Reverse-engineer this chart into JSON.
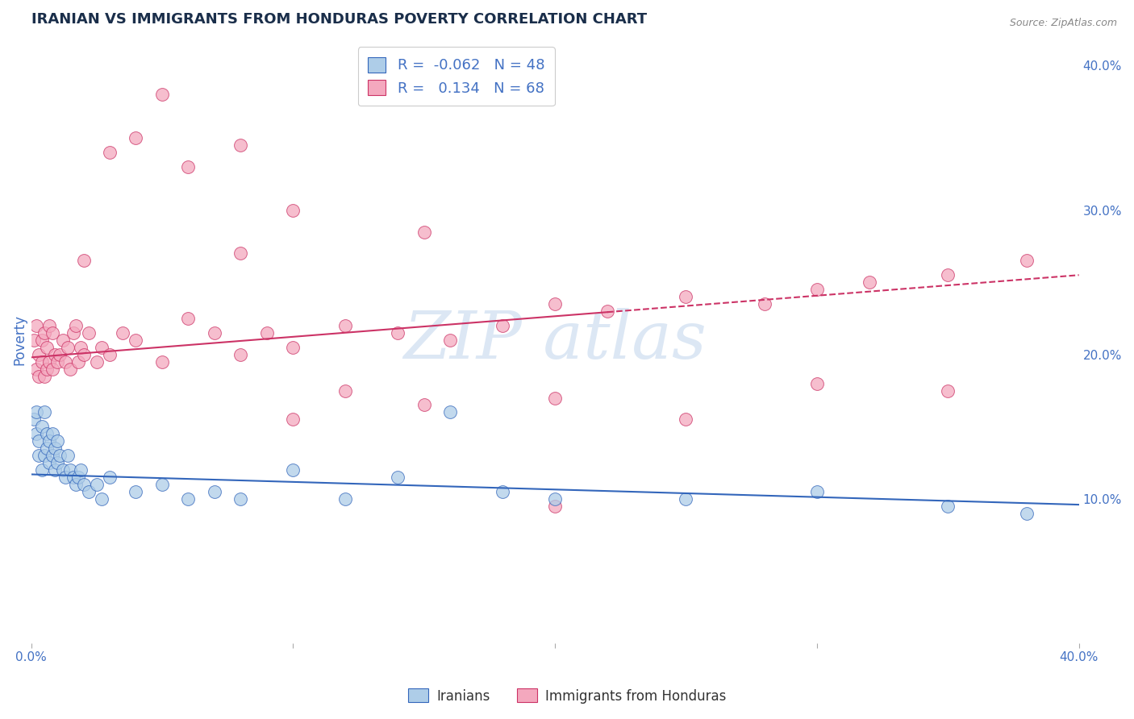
{
  "title": "IRANIAN VS IMMIGRANTS FROM HONDURAS POVERTY CORRELATION CHART",
  "source": "Source: ZipAtlas.com",
  "ylabel": "Poverty",
  "xlim": [
    0.0,
    0.4
  ],
  "ylim": [
    0.0,
    0.42
  ],
  "x_ticks": [
    0.0,
    0.1,
    0.2,
    0.3,
    0.4
  ],
  "x_tick_labels": [
    "0.0%",
    "",
    "",
    "",
    "40.0%"
  ],
  "y_ticks_right": [
    0.1,
    0.2,
    0.3,
    0.4
  ],
  "y_tick_labels_right": [
    "10.0%",
    "20.0%",
    "30.0%",
    "40.0%"
  ],
  "legend_entries": [
    {
      "label": "Iranians",
      "R": -0.062,
      "N": 48
    },
    {
      "label": "Immigrants from Honduras",
      "R": 0.134,
      "N": 68
    }
  ],
  "blue_scatter_color": "#aecde8",
  "pink_scatter_color": "#f4a8be",
  "trend_blue_color": "#3366bb",
  "trend_pink_color": "#cc3366",
  "watermark_color": "#c5d8ee",
  "background_color": "#ffffff",
  "grid_color": "#cccccc",
  "title_color": "#1a2e4a",
  "axis_label_color": "#4472c4",
  "iranians_x": [
    0.001,
    0.002,
    0.002,
    0.003,
    0.003,
    0.004,
    0.004,
    0.005,
    0.005,
    0.006,
    0.006,
    0.007,
    0.007,
    0.008,
    0.008,
    0.009,
    0.009,
    0.01,
    0.01,
    0.011,
    0.012,
    0.013,
    0.014,
    0.015,
    0.016,
    0.017,
    0.018,
    0.019,
    0.02,
    0.022,
    0.025,
    0.027,
    0.03,
    0.04,
    0.05,
    0.06,
    0.07,
    0.08,
    0.1,
    0.12,
    0.14,
    0.18,
    0.2,
    0.25,
    0.3,
    0.35,
    0.38,
    0.16
  ],
  "iranians_y": [
    0.155,
    0.145,
    0.16,
    0.13,
    0.14,
    0.12,
    0.15,
    0.13,
    0.16,
    0.145,
    0.135,
    0.125,
    0.14,
    0.13,
    0.145,
    0.12,
    0.135,
    0.125,
    0.14,
    0.13,
    0.12,
    0.115,
    0.13,
    0.12,
    0.115,
    0.11,
    0.115,
    0.12,
    0.11,
    0.105,
    0.11,
    0.1,
    0.115,
    0.105,
    0.11,
    0.1,
    0.105,
    0.1,
    0.12,
    0.1,
    0.115,
    0.105,
    0.1,
    0.1,
    0.105,
    0.095,
    0.09,
    0.16
  ],
  "honduras_x": [
    0.001,
    0.002,
    0.002,
    0.003,
    0.003,
    0.004,
    0.004,
    0.005,
    0.005,
    0.006,
    0.006,
    0.007,
    0.007,
    0.008,
    0.008,
    0.009,
    0.01,
    0.011,
    0.012,
    0.013,
    0.014,
    0.015,
    0.016,
    0.017,
    0.018,
    0.019,
    0.02,
    0.022,
    0.025,
    0.027,
    0.03,
    0.035,
    0.04,
    0.05,
    0.06,
    0.07,
    0.08,
    0.09,
    0.1,
    0.12,
    0.14,
    0.16,
    0.18,
    0.2,
    0.22,
    0.25,
    0.28,
    0.3,
    0.32,
    0.35,
    0.38,
    0.08,
    0.05,
    0.03,
    0.02,
    0.15,
    0.1,
    0.2,
    0.12,
    0.25,
    0.3,
    0.35,
    0.04,
    0.06,
    0.08,
    0.1,
    0.15,
    0.2
  ],
  "honduras_y": [
    0.21,
    0.19,
    0.22,
    0.185,
    0.2,
    0.195,
    0.21,
    0.185,
    0.215,
    0.19,
    0.205,
    0.195,
    0.22,
    0.19,
    0.215,
    0.2,
    0.195,
    0.2,
    0.21,
    0.195,
    0.205,
    0.19,
    0.215,
    0.22,
    0.195,
    0.205,
    0.2,
    0.215,
    0.195,
    0.205,
    0.2,
    0.215,
    0.21,
    0.195,
    0.225,
    0.215,
    0.2,
    0.215,
    0.205,
    0.22,
    0.215,
    0.21,
    0.22,
    0.235,
    0.23,
    0.24,
    0.235,
    0.245,
    0.25,
    0.255,
    0.265,
    0.345,
    0.38,
    0.34,
    0.265,
    0.165,
    0.155,
    0.17,
    0.175,
    0.155,
    0.18,
    0.175,
    0.35,
    0.33,
    0.27,
    0.3,
    0.285,
    0.095
  ],
  "trend_solid_end": 0.22,
  "iran_trend_start_y": 0.117,
  "iran_trend_end_y": 0.096,
  "hond_trend_start_y": 0.198,
  "hond_trend_end_y": 0.255
}
